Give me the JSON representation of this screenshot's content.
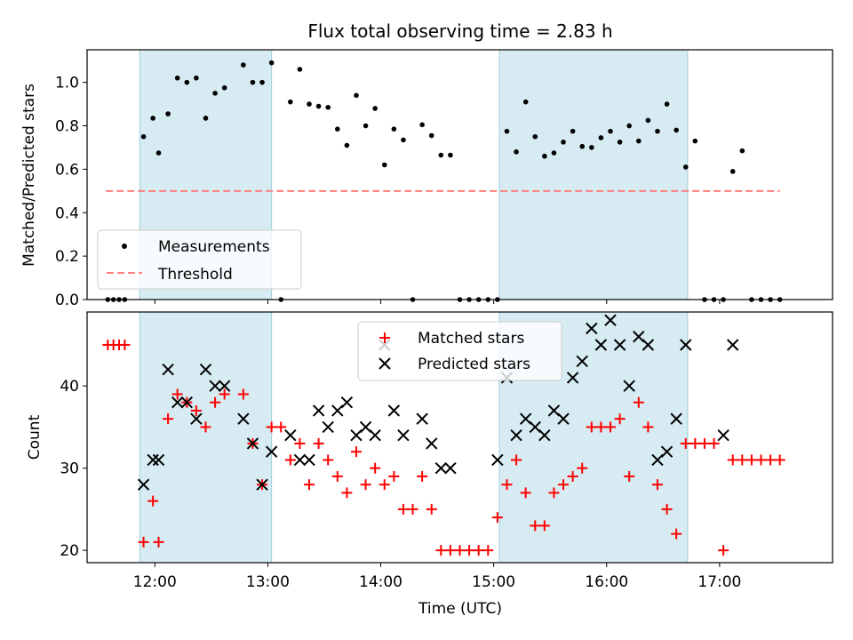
{
  "chart_data": [
    {
      "type": "scatter",
      "title": "Flux total observing time = 2.83 h",
      "xlabel": "",
      "ylabel": "Matched/Predicted stars",
      "xlim": [
        "11:24",
        "18:00"
      ],
      "ylim": [
        0,
        1.15
      ],
      "yticks": [
        0.0,
        0.2,
        0.4,
        0.6,
        0.8,
        1.0
      ],
      "ytick_labels": [
        "0.0",
        "0.2",
        "0.4",
        "0.6",
        "0.8",
        "1.0"
      ],
      "xticks": [
        "12:00",
        "13:00",
        "14:00",
        "15:00",
        "16:00",
        "17:00"
      ],
      "grid": false,
      "legend": "lower-left",
      "shaded_spans": [
        [
          "11:52",
          "13:02"
        ],
        [
          "15:03",
          "16:43"
        ]
      ],
      "threshold": {
        "name": "Threshold",
        "y": 0.5,
        "x_from": "11:34",
        "x_to": "17:32",
        "color": "#ff8080"
      },
      "series": [
        {
          "name": "Measurements",
          "color": "#000000",
          "marker": "dot",
          "points": [
            [
              "11:35",
              0
            ],
            [
              "11:38",
              0
            ],
            [
              "11:41",
              0
            ],
            [
              "11:44",
              0
            ],
            [
              "11:54",
              0.75
            ],
            [
              "11:59",
              0.835
            ],
            [
              "12:02",
              0.675
            ],
            [
              "12:07",
              0.855
            ],
            [
              "12:12",
              1.02
            ],
            [
              "12:17",
              1.0
            ],
            [
              "12:22",
              1.02
            ],
            [
              "12:27",
              0.835
            ],
            [
              "12:32",
              0.95
            ],
            [
              "12:37",
              0.975
            ],
            [
              "12:47",
              1.08
            ],
            [
              "12:52",
              1.0
            ],
            [
              "12:57",
              1.0
            ],
            [
              "13:02",
              1.09
            ],
            [
              "13:07",
              0
            ],
            [
              "13:12",
              0.91
            ],
            [
              "13:17",
              1.06
            ],
            [
              "13:22",
              0.9
            ],
            [
              "13:27",
              0.89
            ],
            [
              "13:32",
              0.885
            ],
            [
              "13:37",
              0.785
            ],
            [
              "13:42",
              0.71
            ],
            [
              "13:47",
              0.94
            ],
            [
              "13:52",
              0.8
            ],
            [
              "13:57",
              0.88
            ],
            [
              "14:02",
              0.62
            ],
            [
              "14:07",
              0.785
            ],
            [
              "14:12",
              0.735
            ],
            [
              "14:17",
              0
            ],
            [
              "14:22",
              0.805
            ],
            [
              "14:27",
              0.755
            ],
            [
              "14:32",
              0.665
            ],
            [
              "14:37",
              0.665
            ],
            [
              "14:42",
              0
            ],
            [
              "14:47",
              0
            ],
            [
              "14:52",
              0
            ],
            [
              "14:57",
              0
            ],
            [
              "15:02",
              0
            ],
            [
              "15:07",
              0.775
            ],
            [
              "15:12",
              0.68
            ],
            [
              "15:17",
              0.91
            ],
            [
              "15:22",
              0.75
            ],
            [
              "15:27",
              0.66
            ],
            [
              "15:32",
              0.675
            ],
            [
              "15:37",
              0.725
            ],
            [
              "15:42",
              0.775
            ],
            [
              "15:47",
              0.705
            ],
            [
              "15:52",
              0.7
            ],
            [
              "15:57",
              0.745
            ],
            [
              "16:02",
              0.775
            ],
            [
              "16:07",
              0.725
            ],
            [
              "16:12",
              0.8
            ],
            [
              "16:17",
              0.73
            ],
            [
              "16:22",
              0.825
            ],
            [
              "16:27",
              0.775
            ],
            [
              "16:32",
              0.9
            ],
            [
              "16:37",
              0.78
            ],
            [
              "16:42",
              0.61
            ],
            [
              "16:47",
              0.73
            ],
            [
              "16:52",
              0
            ],
            [
              "16:57",
              0
            ],
            [
              "17:02",
              0
            ],
            [
              "17:07",
              0.59
            ],
            [
              "17:12",
              0.685
            ],
            [
              "17:17",
              0
            ],
            [
              "17:22",
              0
            ],
            [
              "17:27",
              0
            ],
            [
              "17:32",
              0
            ]
          ]
        }
      ]
    },
    {
      "type": "scatter",
      "title": "",
      "xlabel": "Time (UTC)",
      "ylabel": "Count",
      "xlim": [
        "11:24",
        "18:00"
      ],
      "ylim": [
        18.5,
        49
      ],
      "yticks": [
        20,
        30,
        40
      ],
      "ytick_labels": [
        "20",
        "30",
        "40"
      ],
      "xticks": [
        "12:00",
        "13:00",
        "14:00",
        "15:00",
        "16:00",
        "17:00"
      ],
      "xtick_labels": [
        "12:00",
        "13:00",
        "14:00",
        "15:00",
        "16:00",
        "17:00"
      ],
      "grid": false,
      "legend": "upper-center",
      "shaded_spans": [
        [
          "11:52",
          "13:02"
        ],
        [
          "15:03",
          "16:43"
        ]
      ],
      "series": [
        {
          "name": "Matched stars",
          "color": "#ff0000",
          "marker": "plus",
          "points": [
            [
              "11:35",
              45
            ],
            [
              "11:38",
              45
            ],
            [
              "11:41",
              45
            ],
            [
              "11:44",
              45
            ],
            [
              "11:54",
              21
            ],
            [
              "11:59",
              26
            ],
            [
              "12:02",
              21
            ],
            [
              "12:07",
              36
            ],
            [
              "12:12",
              39
            ],
            [
              "12:17",
              38
            ],
            [
              "12:22",
              37
            ],
            [
              "12:27",
              35
            ],
            [
              "12:32",
              38
            ],
            [
              "12:37",
              39
            ],
            [
              "12:47",
              39
            ],
            [
              "12:52",
              33
            ],
            [
              "12:57",
              28
            ],
            [
              "13:02",
              35
            ],
            [
              "13:07",
              35
            ],
            [
              "13:12",
              31
            ],
            [
              "13:17",
              33
            ],
            [
              "13:22",
              28
            ],
            [
              "13:27",
              33
            ],
            [
              "13:32",
              31
            ],
            [
              "13:37",
              29
            ],
            [
              "13:42",
              27
            ],
            [
              "13:47",
              32
            ],
            [
              "13:52",
              28
            ],
            [
              "13:57",
              30
            ],
            [
              "14:02",
              28
            ],
            [
              "14:07",
              29
            ],
            [
              "14:12",
              25
            ],
            [
              "14:17",
              25
            ],
            [
              "14:22",
              29
            ],
            [
              "14:27",
              25
            ],
            [
              "14:32",
              20
            ],
            [
              "14:37",
              20
            ],
            [
              "14:42",
              20
            ],
            [
              "14:47",
              20
            ],
            [
              "14:52",
              20
            ],
            [
              "14:57",
              20
            ],
            [
              "15:02",
              24
            ],
            [
              "15:07",
              28
            ],
            [
              "15:12",
              31
            ],
            [
              "15:17",
              27
            ],
            [
              "15:22",
              23
            ],
            [
              "15:27",
              23
            ],
            [
              "15:32",
              27
            ],
            [
              "15:37",
              28
            ],
            [
              "15:42",
              29
            ],
            [
              "15:47",
              30
            ],
            [
              "15:52",
              35
            ],
            [
              "15:57",
              35
            ],
            [
              "16:02",
              35
            ],
            [
              "16:07",
              36
            ],
            [
              "16:12",
              29
            ],
            [
              "16:17",
              38
            ],
            [
              "16:22",
              35
            ],
            [
              "16:27",
              28
            ],
            [
              "16:32",
              25
            ],
            [
              "16:37",
              22
            ],
            [
              "16:42",
              33
            ],
            [
              "16:47",
              33
            ],
            [
              "16:52",
              33
            ],
            [
              "16:57",
              33
            ],
            [
              "17:02",
              20
            ],
            [
              "17:07",
              31
            ],
            [
              "17:12",
              31
            ],
            [
              "17:17",
              31
            ],
            [
              "17:22",
              31
            ],
            [
              "17:27",
              31
            ],
            [
              "17:32",
              31
            ]
          ]
        },
        {
          "name": "Predicted stars",
          "color": "#000000",
          "marker": "x",
          "points": [
            [
              "11:54",
              28
            ],
            [
              "11:59",
              31
            ],
            [
              "12:02",
              31
            ],
            [
              "12:07",
              42
            ],
            [
              "12:12",
              38
            ],
            [
              "12:17",
              38
            ],
            [
              "12:22",
              36
            ],
            [
              "12:27",
              42
            ],
            [
              "12:32",
              40
            ],
            [
              "12:37",
              40
            ],
            [
              "12:47",
              36
            ],
            [
              "12:52",
              33
            ],
            [
              "12:57",
              28
            ],
            [
              "13:02",
              32
            ],
            [
              "13:12",
              34
            ],
            [
              "13:17",
              31
            ],
            [
              "13:22",
              31
            ],
            [
              "13:27",
              37
            ],
            [
              "13:32",
              35
            ],
            [
              "13:37",
              37
            ],
            [
              "13:42",
              38
            ],
            [
              "13:47",
              34
            ],
            [
              "13:52",
              35
            ],
            [
              "13:57",
              34
            ],
            [
              "14:02",
              45
            ],
            [
              "14:07",
              37
            ],
            [
              "14:12",
              34
            ],
            [
              "14:22",
              36
            ],
            [
              "14:27",
              33
            ],
            [
              "14:32",
              30
            ],
            [
              "14:37",
              30
            ],
            [
              "15:02",
              31
            ],
            [
              "15:07",
              41
            ],
            [
              "15:12",
              34
            ],
            [
              "15:17",
              36
            ],
            [
              "15:22",
              35
            ],
            [
              "15:27",
              34
            ],
            [
              "15:32",
              37
            ],
            [
              "15:37",
              36
            ],
            [
              "15:42",
              41
            ],
            [
              "15:47",
              43
            ],
            [
              "15:52",
              47
            ],
            [
              "15:57",
              45
            ],
            [
              "16:02",
              48
            ],
            [
              "16:07",
              45
            ],
            [
              "16:12",
              40
            ],
            [
              "16:17",
              46
            ],
            [
              "16:22",
              45
            ],
            [
              "16:27",
              31
            ],
            [
              "16:32",
              32
            ],
            [
              "16:37",
              36
            ],
            [
              "16:42",
              45
            ],
            [
              "17:02",
              34
            ],
            [
              "17:07",
              45
            ]
          ]
        }
      ]
    }
  ]
}
